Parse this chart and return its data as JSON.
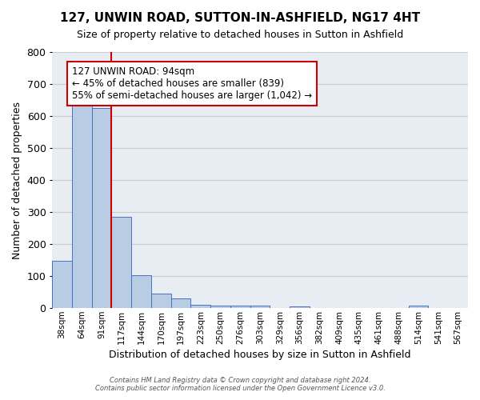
{
  "title": "127, UNWIN ROAD, SUTTON-IN-ASHFIELD, NG17 4HT",
  "subtitle": "Size of property relative to detached houses in Sutton in Ashfield",
  "xlabel": "Distribution of detached houses by size in Sutton in Ashfield",
  "ylabel": "Number of detached properties",
  "counts": [
    148,
    632,
    626,
    286,
    103,
    45,
    30,
    10,
    8,
    8,
    8,
    0,
    5,
    0,
    0,
    0,
    0,
    0,
    8,
    0,
    0
  ],
  "bar_color": "#b8cce4",
  "bar_edge_color": "#4472c4",
  "grid_color": "#cccccc",
  "background_color": "#e8edf4",
  "vline_pos": 2.5,
  "annotation_title": "127 UNWIN ROAD: 94sqm",
  "annotation_line1": "← 45% of detached houses are smaller (839)",
  "annotation_line2": "55% of semi-detached houses are larger (1,042) →",
  "annotation_box_color": "#ffffff",
  "annotation_box_edge_color": "#cc0000",
  "tick_labels": [
    "38sqm",
    "64sqm",
    "91sqm",
    "117sqm",
    "144sqm",
    "170sqm",
    "197sqm",
    "223sqm",
    "250sqm",
    "276sqm",
    "303sqm",
    "329sqm",
    "356sqm",
    "382sqm",
    "409sqm",
    "435sqm",
    "461sqm",
    "488sqm",
    "514sqm",
    "541sqm",
    "567sqm"
  ],
  "ylim": [
    0,
    800
  ],
  "yticks": [
    0,
    100,
    200,
    300,
    400,
    500,
    600,
    700,
    800
  ],
  "footer_line1": "Contains HM Land Registry data © Crown copyright and database right 2024.",
  "footer_line2": "Contains public sector information licensed under the Open Government Licence v3.0."
}
